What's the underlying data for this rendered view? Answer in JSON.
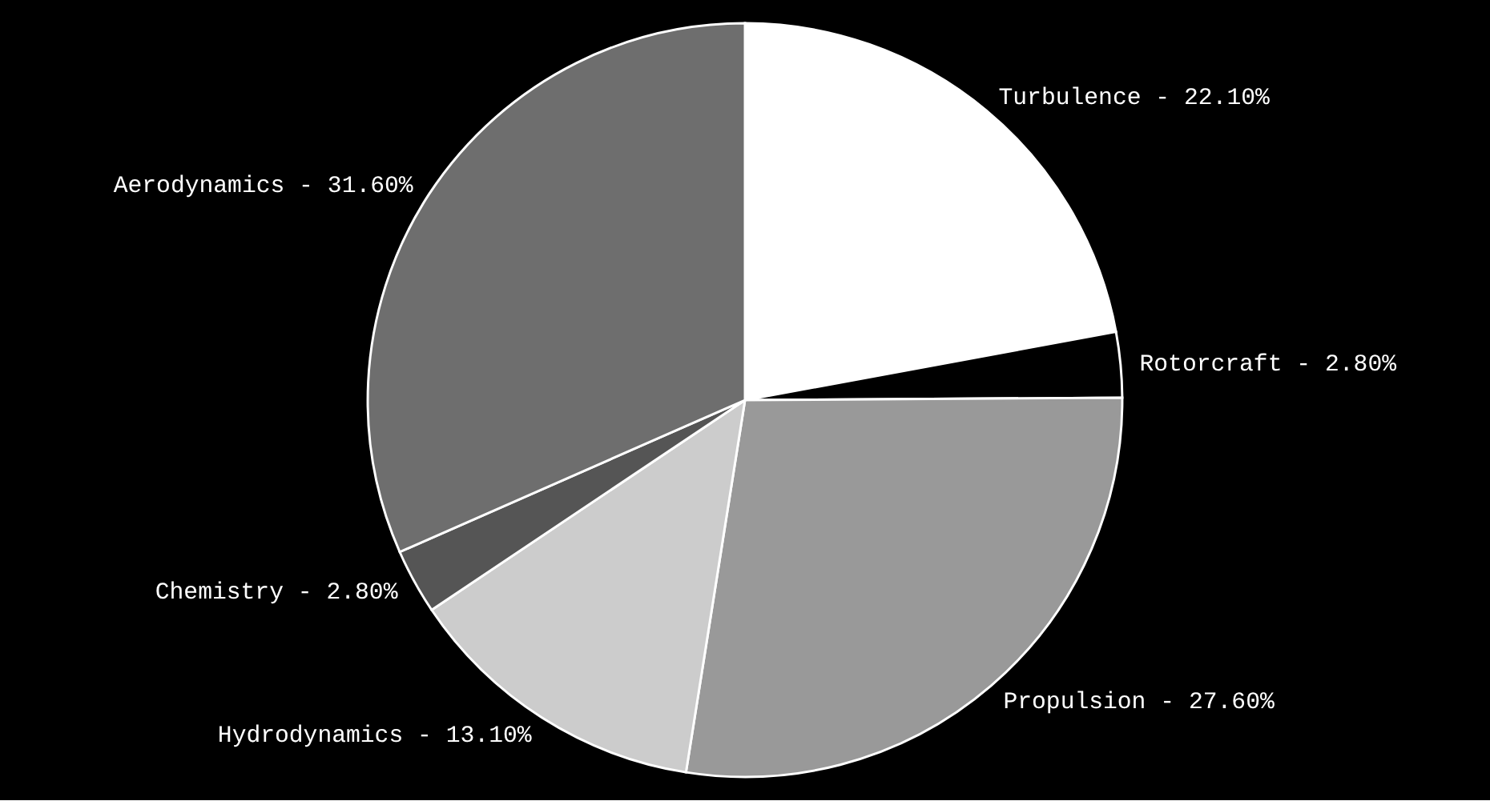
{
  "chart_data": {
    "type": "pie",
    "categories": [
      "Turbulence -",
      "Rotorcraft -",
      "Propulsion -",
      "Hydrodynamics -",
      "Chemistry -",
      "Aerodynamics -"
    ],
    "values": [
      22.1,
      2.8,
      27.6,
      13.1,
      2.8,
      31.6
    ],
    "colors": [
      "#ffffff",
      "#000000",
      "#999999",
      "#cccccc",
      "#555555",
      "#6e6e6e"
    ],
    "value_labels": [
      "22.10%",
      "2.80%",
      "27.60%",
      "13.10%",
      "2.80%",
      "31.60%"
    ]
  }
}
